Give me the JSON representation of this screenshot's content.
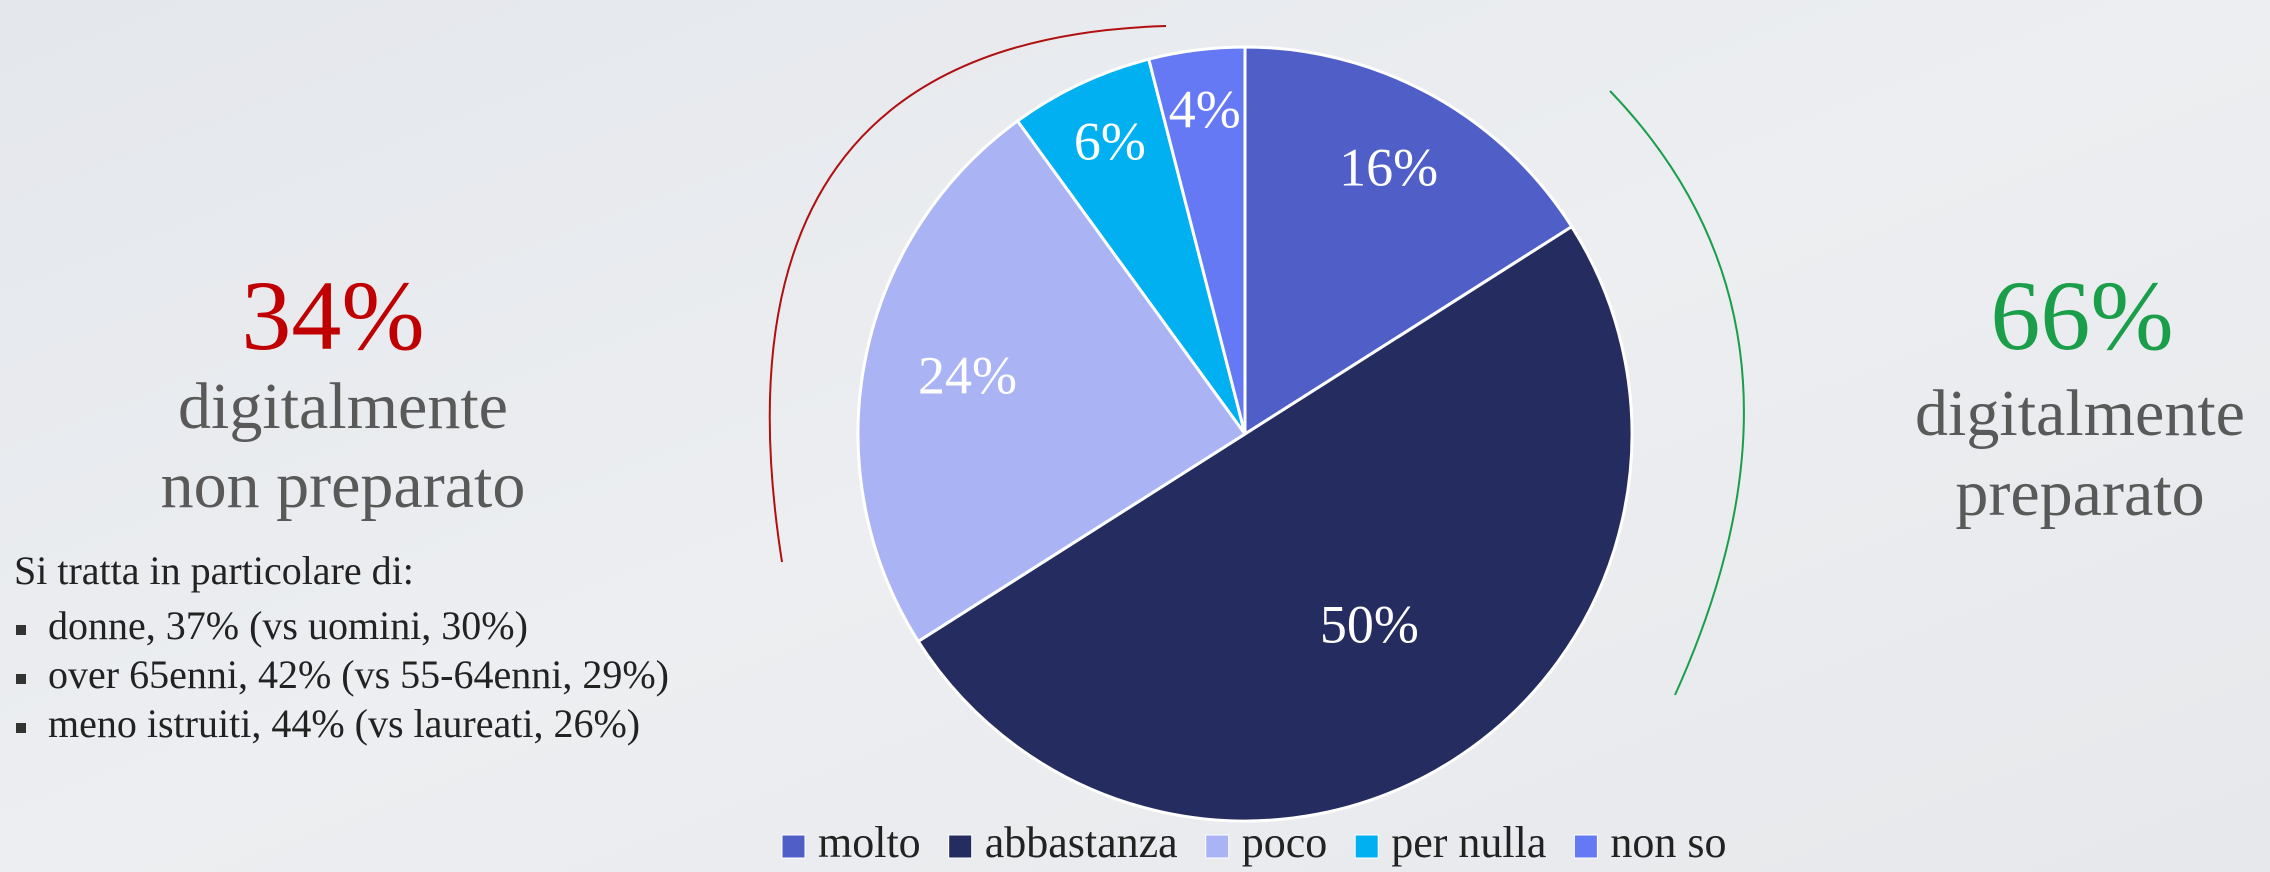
{
  "chart_data": {
    "type": "pie",
    "categories": [
      "molto",
      "abbastanza",
      "poco",
      "per nulla",
      "non so"
    ],
    "values": [
      16,
      50,
      24,
      6,
      4
    ],
    "value_labels": [
      "16%",
      "50%",
      "24%",
      "6%",
      "4%"
    ],
    "colors": [
      "#4f5fc7",
      "#252c5f",
      "#aab4f5",
      "#00b0f0",
      "#6679f5"
    ],
    "legend": "bottom",
    "annotations": {
      "left": {
        "headline": "34%",
        "lines": [
          "digitalmente",
          "non preparato"
        ],
        "intro": "Si tratta in particolare di:",
        "bullets": [
          "donne, 37% (vs uomini, 30%)",
          "over 65enni, 42% (vs 55-64enni, 29%)",
          "meno istruiti, 44% (vs laureati, 26%)"
        ]
      },
      "right": {
        "headline": "66%",
        "lines": [
          "digitalmente",
          "preparato"
        ]
      }
    }
  }
}
